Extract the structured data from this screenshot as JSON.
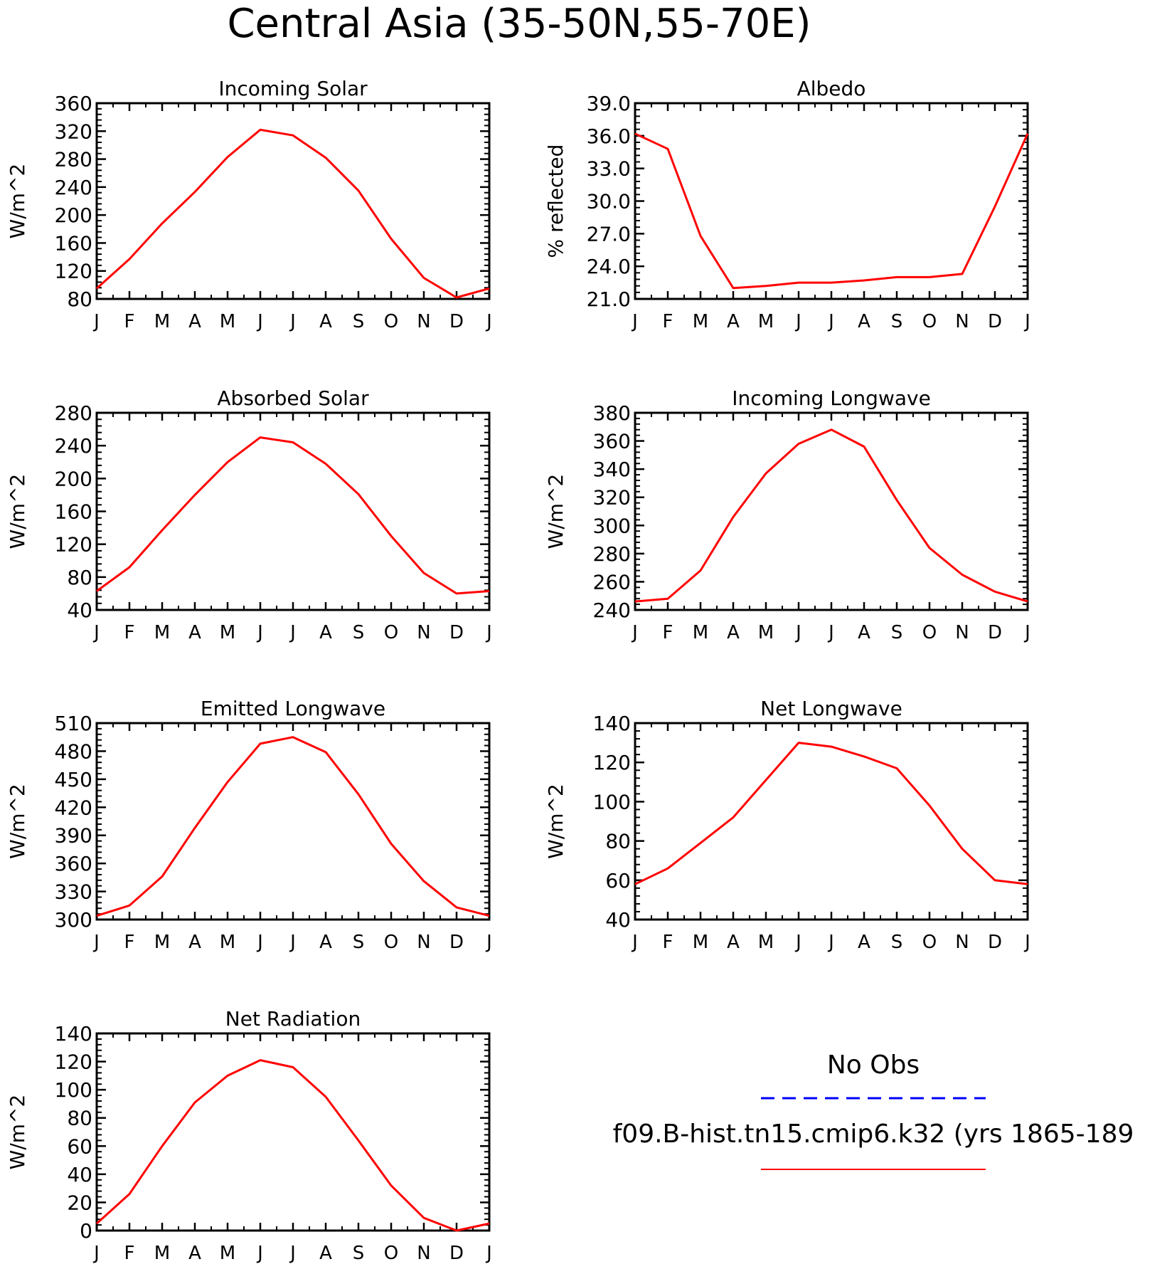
{
  "figure": {
    "title": "Central Asia (35-50N,55-70E)",
    "legend": {
      "obs_label": "No Obs",
      "obs_color": "#0000ff",
      "model_label": "f09.B-hist.tn15.cmip6.k32 (yrs 1865-189",
      "model_color": "#ff0000"
    }
  },
  "chart_data": [
    {
      "type": "line",
      "title": "Incoming Solar",
      "ylabel": "W/m^2",
      "categories": [
        "J",
        "F",
        "M",
        "A",
        "M",
        "J",
        "J",
        "A",
        "S",
        "O",
        "N",
        "D",
        "J"
      ],
      "ylim": [
        80,
        360
      ],
      "yticks": [
        "80",
        "120",
        "160",
        "200",
        "240",
        "280",
        "320",
        "360"
      ],
      "series": [
        {
          "values": [
            95,
            137,
            188,
            233,
            283,
            322,
            314,
            282,
            235,
            166,
            110,
            82,
            95
          ]
        }
      ]
    },
    {
      "type": "line",
      "title": "Albedo",
      "ylabel": "% reflected",
      "categories": [
        "J",
        "F",
        "M",
        "A",
        "M",
        "J",
        "J",
        "A",
        "S",
        "O",
        "N",
        "D",
        "J"
      ],
      "ylim": [
        21.0,
        39.0
      ],
      "yticks": [
        "21.0",
        "24.0",
        "27.0",
        "30.0",
        "33.0",
        "36.0",
        "39.0"
      ],
      "series": [
        {
          "values": [
            36.2,
            34.8,
            26.8,
            22.0,
            22.2,
            22.5,
            22.5,
            22.7,
            23.0,
            23.0,
            23.3,
            29.5,
            36.2
          ]
        }
      ]
    },
    {
      "type": "line",
      "title": "Absorbed Solar",
      "ylabel": "W/m^2",
      "categories": [
        "J",
        "F",
        "M",
        "A",
        "M",
        "J",
        "J",
        "A",
        "S",
        "O",
        "N",
        "D",
        "J"
      ],
      "ylim": [
        40,
        280
      ],
      "yticks": [
        "40",
        "80",
        "120",
        "160",
        "200",
        "240",
        "280"
      ],
      "series": [
        {
          "values": [
            63,
            92,
            137,
            180,
            220,
            250,
            244,
            218,
            181,
            130,
            85,
            60,
            63
          ]
        }
      ]
    },
    {
      "type": "line",
      "title": "Incoming Longwave",
      "ylabel": "W/m^2",
      "categories": [
        "J",
        "F",
        "M",
        "A",
        "M",
        "J",
        "J",
        "A",
        "S",
        "O",
        "N",
        "D",
        "J"
      ],
      "ylim": [
        240,
        380
      ],
      "yticks": [
        "240",
        "260",
        "280",
        "300",
        "320",
        "340",
        "360",
        "380"
      ],
      "series": [
        {
          "values": [
            246,
            248,
            268,
            306,
            337,
            358,
            368,
            356,
            318,
            284,
            265,
            253,
            246
          ]
        }
      ]
    },
    {
      "type": "line",
      "title": "Emitted Longwave",
      "ylabel": "W/m^2",
      "categories": [
        "J",
        "F",
        "M",
        "A",
        "M",
        "J",
        "J",
        "A",
        "S",
        "O",
        "N",
        "D",
        "J"
      ],
      "ylim": [
        300,
        510
      ],
      "yticks": [
        "300",
        "330",
        "360",
        "390",
        "420",
        "450",
        "480",
        "510"
      ],
      "series": [
        {
          "values": [
            304,
            315,
            346,
            398,
            447,
            488,
            495,
            479,
            434,
            381,
            341,
            313,
            304
          ]
        }
      ]
    },
    {
      "type": "line",
      "title": "Net Longwave",
      "ylabel": "W/m^2",
      "categories": [
        "J",
        "F",
        "M",
        "A",
        "M",
        "J",
        "J",
        "A",
        "S",
        "O",
        "N",
        "D",
        "J"
      ],
      "ylim": [
        40,
        140
      ],
      "yticks": [
        "40",
        "60",
        "80",
        "100",
        "120",
        "140"
      ],
      "series": [
        {
          "values": [
            58,
            66,
            79,
            92,
            111,
            130,
            128,
            123,
            117,
            98,
            76,
            60,
            58
          ]
        }
      ]
    },
    {
      "type": "line",
      "title": "Net Radiation",
      "ylabel": "W/m^2",
      "categories": [
        "J",
        "F",
        "M",
        "A",
        "M",
        "J",
        "J",
        "A",
        "S",
        "O",
        "N",
        "D",
        "J"
      ],
      "ylim": [
        0,
        140
      ],
      "yticks": [
        "0",
        "20",
        "40",
        "60",
        "80",
        "100",
        "120",
        "140"
      ],
      "series": [
        {
          "values": [
            5,
            26,
            60,
            91,
            110,
            121,
            116,
            95,
            64,
            32,
            9,
            0,
            5
          ]
        }
      ]
    }
  ]
}
